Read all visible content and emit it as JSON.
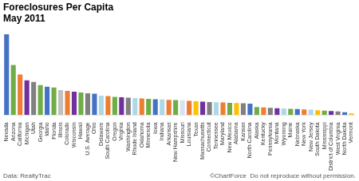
{
  "chart_data": {
    "type": "bar",
    "title": "Foreclosures Per Capita\nMay 2011",
    "annotations": [
      "Data: RealtyTrac",
      "©ChartForce  Do not reproduce without permission."
    ],
    "categories": [
      "Nevada",
      "Arizona",
      "California",
      "Michigan",
      "Utah",
      "Georgia",
      "Idaho",
      "Florida",
      "Illinois",
      "Colorado",
      "Wisconsin",
      "Hawaii",
      "U.S. Average",
      "Ohio",
      "Delaware",
      "South Carolina",
      "Oregon",
      "Virginia",
      "Washington",
      "Rhode Island",
      "Oklahoma",
      "Minnesota",
      "Iowa",
      "Indiana",
      "Arkansas",
      "New Hampshire",
      "Missouri",
      "Louisiana",
      "Texas",
      "Massachusetts",
      "Connecticut",
      "Tennessee",
      "Maryland",
      "New Mexico",
      "Alabama",
      "Kansas",
      "North Carolina",
      "Alaska",
      "Kentucky",
      "Pennsylvania",
      "Montana",
      "Wyoming",
      "Maine",
      "Nebraska",
      "New York",
      "New Jersey",
      "South Dakota",
      "Mississippi",
      "District of Columbia",
      "West Virginia",
      "North Dakota",
      "Vermont"
    ],
    "values": [
      1.0,
      0.62,
      0.5,
      0.43,
      0.41,
      0.37,
      0.35,
      0.34,
      0.31,
      0.3,
      0.29,
      0.28,
      0.27,
      0.265,
      0.24,
      0.235,
      0.225,
      0.22,
      0.215,
      0.21,
      0.205,
      0.2,
      0.195,
      0.192,
      0.188,
      0.185,
      0.183,
      0.175,
      0.17,
      0.165,
      0.162,
      0.158,
      0.155,
      0.15,
      0.148,
      0.145,
      0.14,
      0.1,
      0.095,
      0.09,
      0.085,
      0.082,
      0.078,
      0.074,
      0.07,
      0.066,
      0.06,
      0.055,
      0.05,
      0.045,
      0.035,
      0.02
    ],
    "colors": [
      "#4472c4",
      "#70ad47",
      "#ed7d31",
      "#7030a0",
      "#808080",
      "#70ad47",
      "#4472c4",
      "#70ad47",
      "#c0c0c0",
      "#ed7d31",
      "#7030a0",
      "#70ad47",
      "#808080",
      "#4472c4",
      "#add8e6",
      "#ed7d31",
      "#70ad47",
      "#7030a0",
      "#808080",
      "#add8e6",
      "#ed7d31",
      "#70ad47",
      "#4472c4",
      "#add8e6",
      "#ed7d31",
      "#70ad47",
      "#d9e1f2",
      "#ed7d31",
      "#ffc000",
      "#7030a0",
      "#808080",
      "#add8e6",
      "#ed7d31",
      "#70ad47",
      "#ffc000",
      "#808080",
      "#4472c4",
      "#70ad47",
      "#ed7d31",
      "#808080",
      "#7030a0",
      "#add8e6",
      "#70ad47",
      "#4472c4",
      "#ed7d31",
      "#add8e6",
      "#ffc000",
      "#70ad47",
      "#7030a0",
      "#808080",
      "#4472c4",
      "#ffc000"
    ],
    "ylim": [
      0,
      1.08
    ],
    "grid": false,
    "tick_labels": "x"
  }
}
